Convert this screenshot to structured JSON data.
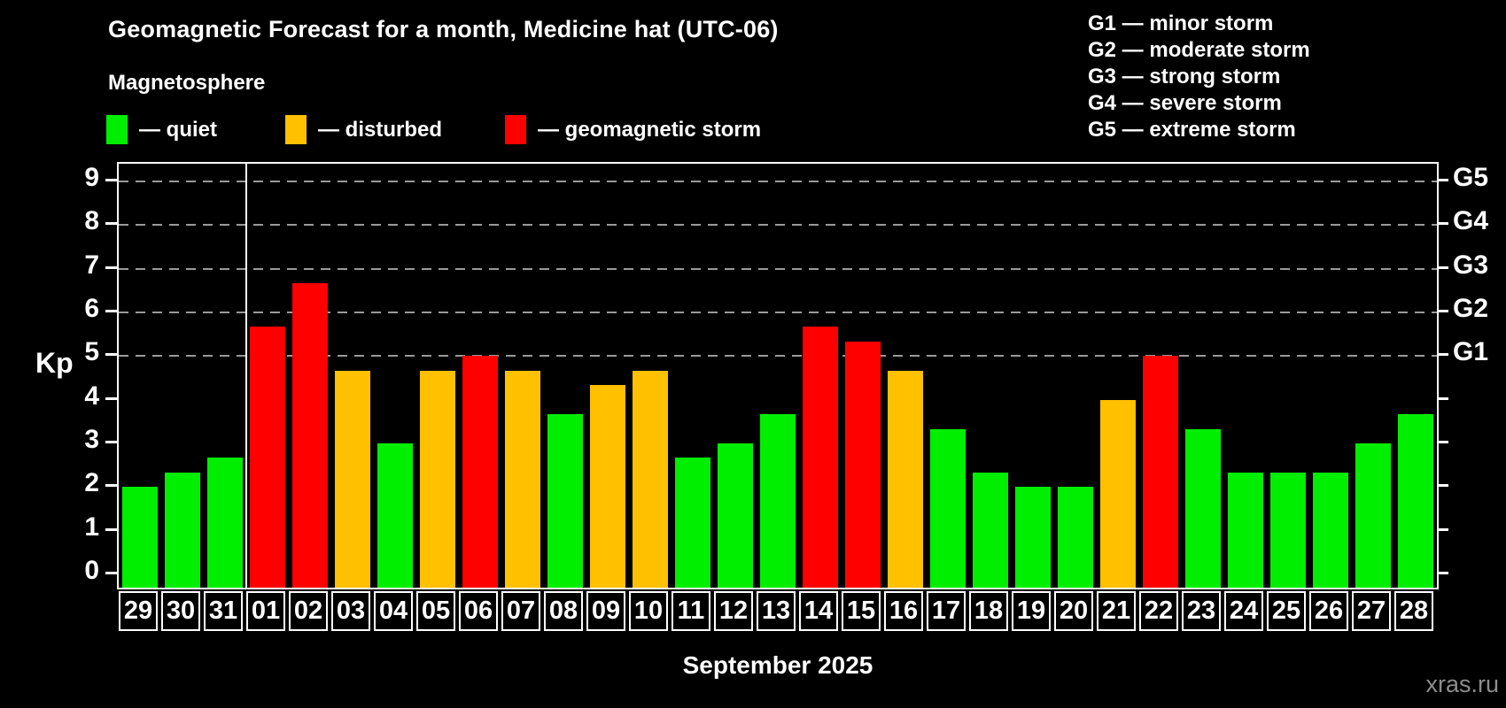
{
  "title": "Geomagnetic Forecast for a month, Medicine hat (UTC-06)",
  "subtitle": "Magnetosphere",
  "legend": {
    "quiet": "— quiet",
    "disturbed": "— disturbed",
    "storm": "— geomagnetic storm"
  },
  "g_scale": [
    "G1 — minor storm",
    "G2 — moderate storm",
    "G3 — strong storm",
    "G4 — severe storm",
    "G5 — extreme storm"
  ],
  "colors": {
    "quiet": "#00ee00",
    "disturbed": "#ffc000",
    "storm": "#ff0000",
    "grid": "#9a9a9a",
    "axis": "#ffffff",
    "watermark": "#8d8d8d"
  },
  "watermark": "xras.ru",
  "chart_data": {
    "type": "bar",
    "title": "Geomagnetic Forecast for a month, Medicine hat (UTC-06)",
    "xlabel": "September 2025",
    "ylabel": "Kp",
    "ylim": [
      -0.3,
      9.4
    ],
    "y_ticks": [
      0,
      1,
      2,
      3,
      4,
      5,
      6,
      7,
      8,
      9
    ],
    "grid_levels": [
      5,
      6,
      7,
      8,
      9
    ],
    "right_axis": [
      {
        "kp": 5,
        "label": "G1"
      },
      {
        "kp": 6,
        "label": "G2"
      },
      {
        "kp": 7,
        "label": "G3"
      },
      {
        "kp": 8,
        "label": "G4"
      },
      {
        "kp": 9,
        "label": "G5"
      }
    ],
    "grid": "dashed horizontal lines at storm levels 5-9 only",
    "legend_position": "top-left",
    "month_separator_after_bar": 3,
    "categories": [
      "29",
      "30",
      "31",
      "01",
      "02",
      "03",
      "04",
      "05",
      "06",
      "07",
      "08",
      "09",
      "10",
      "11",
      "12",
      "13",
      "14",
      "15",
      "16",
      "17",
      "18",
      "19",
      "20",
      "21",
      "22",
      "23",
      "24",
      "25",
      "26",
      "27",
      "28"
    ],
    "values": [
      2.0,
      2.33,
      2.67,
      5.67,
      6.67,
      4.67,
      3.0,
      4.67,
      5.0,
      4.67,
      3.67,
      4.33,
      4.67,
      2.67,
      3.0,
      3.67,
      5.67,
      5.33,
      4.67,
      3.33,
      2.33,
      2.0,
      2.0,
      4.0,
      5.0,
      3.33,
      2.33,
      2.33,
      2.33,
      3.0,
      3.67
    ],
    "status": [
      "quiet",
      "quiet",
      "quiet",
      "storm",
      "storm",
      "disturbed",
      "quiet",
      "disturbed",
      "storm",
      "disturbed",
      "quiet",
      "disturbed",
      "disturbed",
      "quiet",
      "quiet",
      "quiet",
      "storm",
      "storm",
      "disturbed",
      "quiet",
      "quiet",
      "quiet",
      "quiet",
      "disturbed",
      "storm",
      "quiet",
      "quiet",
      "quiet",
      "quiet",
      "quiet",
      "quiet"
    ]
  }
}
